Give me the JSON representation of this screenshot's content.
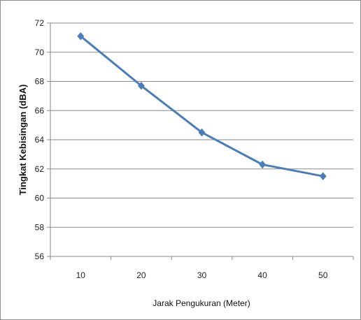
{
  "chart_data": {
    "type": "line",
    "title": "",
    "xlabel": "Jarak Pengukuran (Meter)",
    "ylabel": "Tingkat Kebisingan (dBA)",
    "categories": [
      "10",
      "20",
      "30",
      "40",
      "50"
    ],
    "series": [
      {
        "values": [
          71.1,
          67.7,
          64.5,
          62.3,
          61.5
        ],
        "color": "#4a7ebb",
        "marker": "diamond"
      }
    ],
    "ylim": [
      56,
      72
    ],
    "yticks": [
      "56",
      "58",
      "60",
      "62",
      "64",
      "66",
      "68",
      "70",
      "72"
    ],
    "grid": "horizontal",
    "legend": "none"
  }
}
